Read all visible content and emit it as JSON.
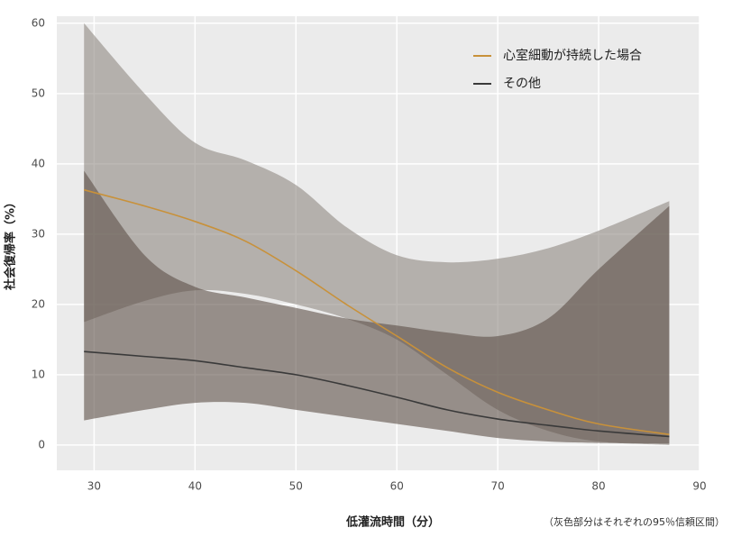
{
  "chart_data": {
    "type": "line",
    "x_label": "低灌流時間（分）",
    "y_label": "社会復帰率（%）",
    "note": "（灰色部分はそれぞれの95％信頼区間）",
    "x": [
      29,
      35,
      40,
      45,
      50,
      55,
      60,
      65,
      70,
      75,
      80,
      87
    ],
    "series": [
      {
        "name": "心室細動が持続した場合",
        "color": "#c8913a",
        "band_color": "#8f8882",
        "values": [
          36.3,
          34,
          31.8,
          29,
          24.8,
          20,
          15.5,
          11,
          7.5,
          5,
          3,
          1.5
        ],
        "lower": [
          17.5,
          20.5,
          22,
          21.5,
          20,
          18,
          15,
          10,
          5,
          2,
          0.5,
          0
        ],
        "upper": [
          60,
          50,
          43,
          40.5,
          37,
          31,
          27,
          26,
          26.5,
          28,
          30.5,
          34.7
        ]
      },
      {
        "name": "その他",
        "color": "#3a3a3a",
        "band_color": "#5e5048",
        "values": [
          13.3,
          12.6,
          12,
          11,
          10,
          8.5,
          6.8,
          5,
          3.7,
          2.8,
          2,
          1.2
        ],
        "lower": [
          3.5,
          5,
          6,
          6,
          5,
          4,
          3,
          2,
          1,
          0.5,
          0.3,
          0.2
        ],
        "upper": [
          39,
          27,
          22.5,
          21,
          19.5,
          18,
          17,
          16,
          15.5,
          18,
          25,
          34
        ]
      }
    ],
    "xlim": [
      26.3,
      90
    ],
    "xticks": [
      30,
      40,
      50,
      60,
      70,
      80,
      90
    ],
    "ylim": [
      -3.6,
      61
    ],
    "yticks": [
      0,
      10,
      20,
      30,
      40,
      50,
      60
    ],
    "grid": true,
    "legend": "top-right"
  }
}
